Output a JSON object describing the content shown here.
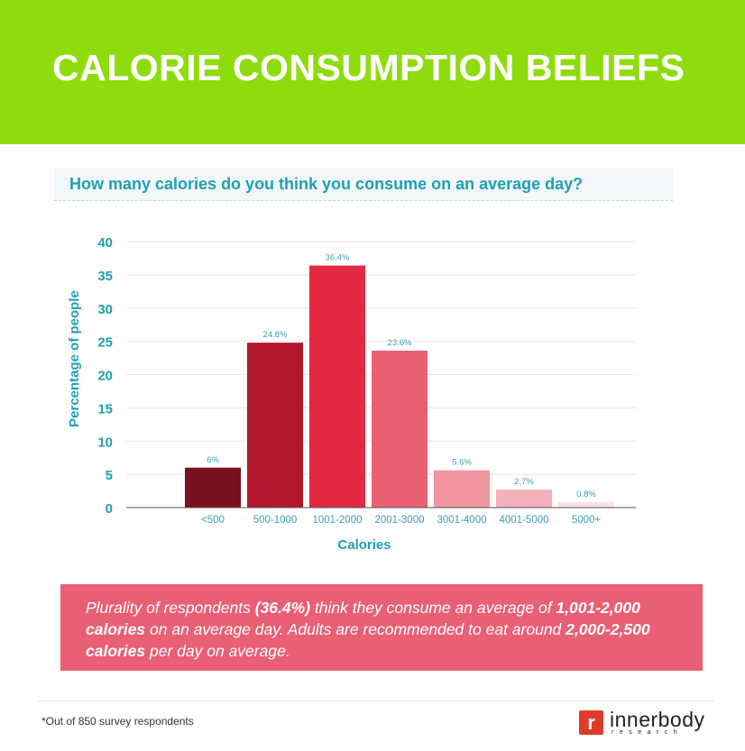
{
  "header": {
    "title": "CALORIE CONSUMPTION BELIEFS"
  },
  "question": "How many calories do you think you consume on an average day?",
  "chart_data": {
    "type": "bar",
    "title": "",
    "xlabel": "Calories",
    "ylabel": "Percentage of people",
    "ylim": [
      0,
      40
    ],
    "yticks": [
      0,
      5,
      10,
      15,
      20,
      25,
      30,
      35,
      40
    ],
    "grid": true,
    "categories": [
      "<500",
      "500-1000",
      "1001-2000",
      "2001-3000",
      "3001-4000",
      "4001-5000",
      "5000+"
    ],
    "values": [
      6,
      24.8,
      36.4,
      23.6,
      5.6,
      2.7,
      0.8
    ],
    "data_labels": [
      "6%",
      "24.8%",
      "36.4%",
      "23.6%",
      "5.6%",
      "2.7%",
      "0.8%"
    ],
    "colors": [
      "#7a0f1e",
      "#b3172d",
      "#e32942",
      "#e95f74",
      "#f0959f",
      "#f4b1ba",
      "#fbe1e4"
    ],
    "axis_color": "#1f9fb3"
  },
  "note": {
    "t1": "Plurality of respondents ",
    "b1": "(36.4%)",
    "t2": " think they consume an average of ",
    "b2": "1,001-2,000 calories",
    "t3": " on an average day. Adults are recommended to eat around ",
    "b3": "2,000-2,500 calories",
    "t4": " per day on average."
  },
  "footnote": "*Out of 850 survey respondents",
  "logo": {
    "name": "innerbody",
    "sub": "research",
    "mark": "r"
  }
}
